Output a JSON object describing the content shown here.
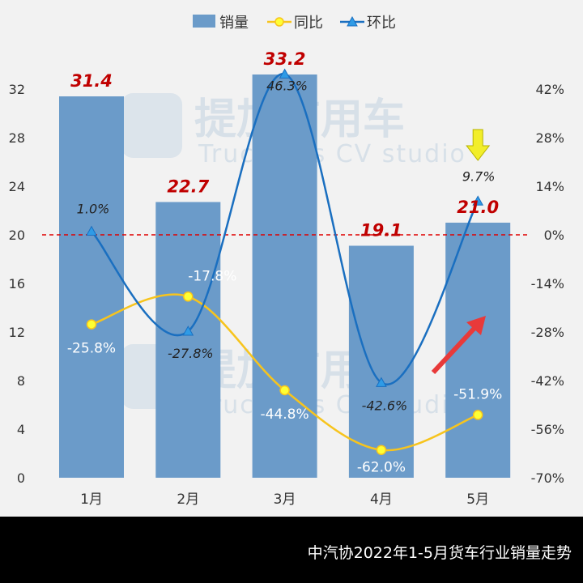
{
  "footer": {
    "caption": "中汽协2022年1-5月货车行业销量走势"
  },
  "watermark": {
    "brand": "提加商用车",
    "english": "TruckPlus CV studio"
  },
  "chart_data": {
    "type": "bar",
    "categories": [
      "1月",
      "2月",
      "3月",
      "4月",
      "5月"
    ],
    "title": "",
    "xlabel": "",
    "ylabel": "",
    "ylim": [
      0,
      34
    ],
    "yticks": [
      0,
      4,
      8,
      12,
      16,
      20,
      24,
      28,
      32
    ],
    "y2lim": [
      -70,
      46
    ],
    "y2ticks": [
      "-70%",
      "-56%",
      "-42%",
      "-28%",
      "-14%",
      "0%",
      "14%",
      "28%",
      "42%"
    ],
    "y2tick_values": [
      -70,
      -56,
      -42,
      -28,
      -14,
      0,
      14,
      28,
      42
    ],
    "legend_position": "top-center",
    "grid": false,
    "series": [
      {
        "name": "销量",
        "type": "bar",
        "color": "#6b9bc9",
        "label_color": "#c00000",
        "values": [
          31.4,
          22.7,
          33.2,
          19.1,
          21.0
        ],
        "labels": [
          "31.4",
          "22.7",
          "33.2",
          "19.1",
          "21.0"
        ]
      },
      {
        "name": "同比",
        "type": "line",
        "axis": "right",
        "color": "#f7c41d",
        "marker": "circle",
        "label_color": "#ffffff",
        "values": [
          -25.8,
          -17.8,
          -44.8,
          -62.0,
          -51.9
        ],
        "labels": [
          "-25.8%",
          "-17.8%",
          "-44.8%",
          "-62.0%",
          "-51.9%"
        ]
      },
      {
        "name": "环比",
        "type": "line",
        "axis": "right",
        "color": "#1a6fc0",
        "marker": "triangle",
        "label_color": "#222222",
        "values": [
          1.0,
          -27.8,
          46.3,
          -42.6,
          9.7
        ],
        "labels": [
          "1.0%",
          "-27.8%",
          "46.3%",
          "-42.6%",
          "9.7%"
        ]
      }
    ],
    "reference_line": {
      "axis": "right",
      "value": 0,
      "color": "#e00000",
      "style": "dashed"
    },
    "annotations": [
      {
        "type": "arrow-down",
        "color": "#f2ee2a",
        "at_category": "5月"
      },
      {
        "type": "arrow-up-right",
        "color": "#e83a3a",
        "at_category": "5月"
      }
    ]
  }
}
